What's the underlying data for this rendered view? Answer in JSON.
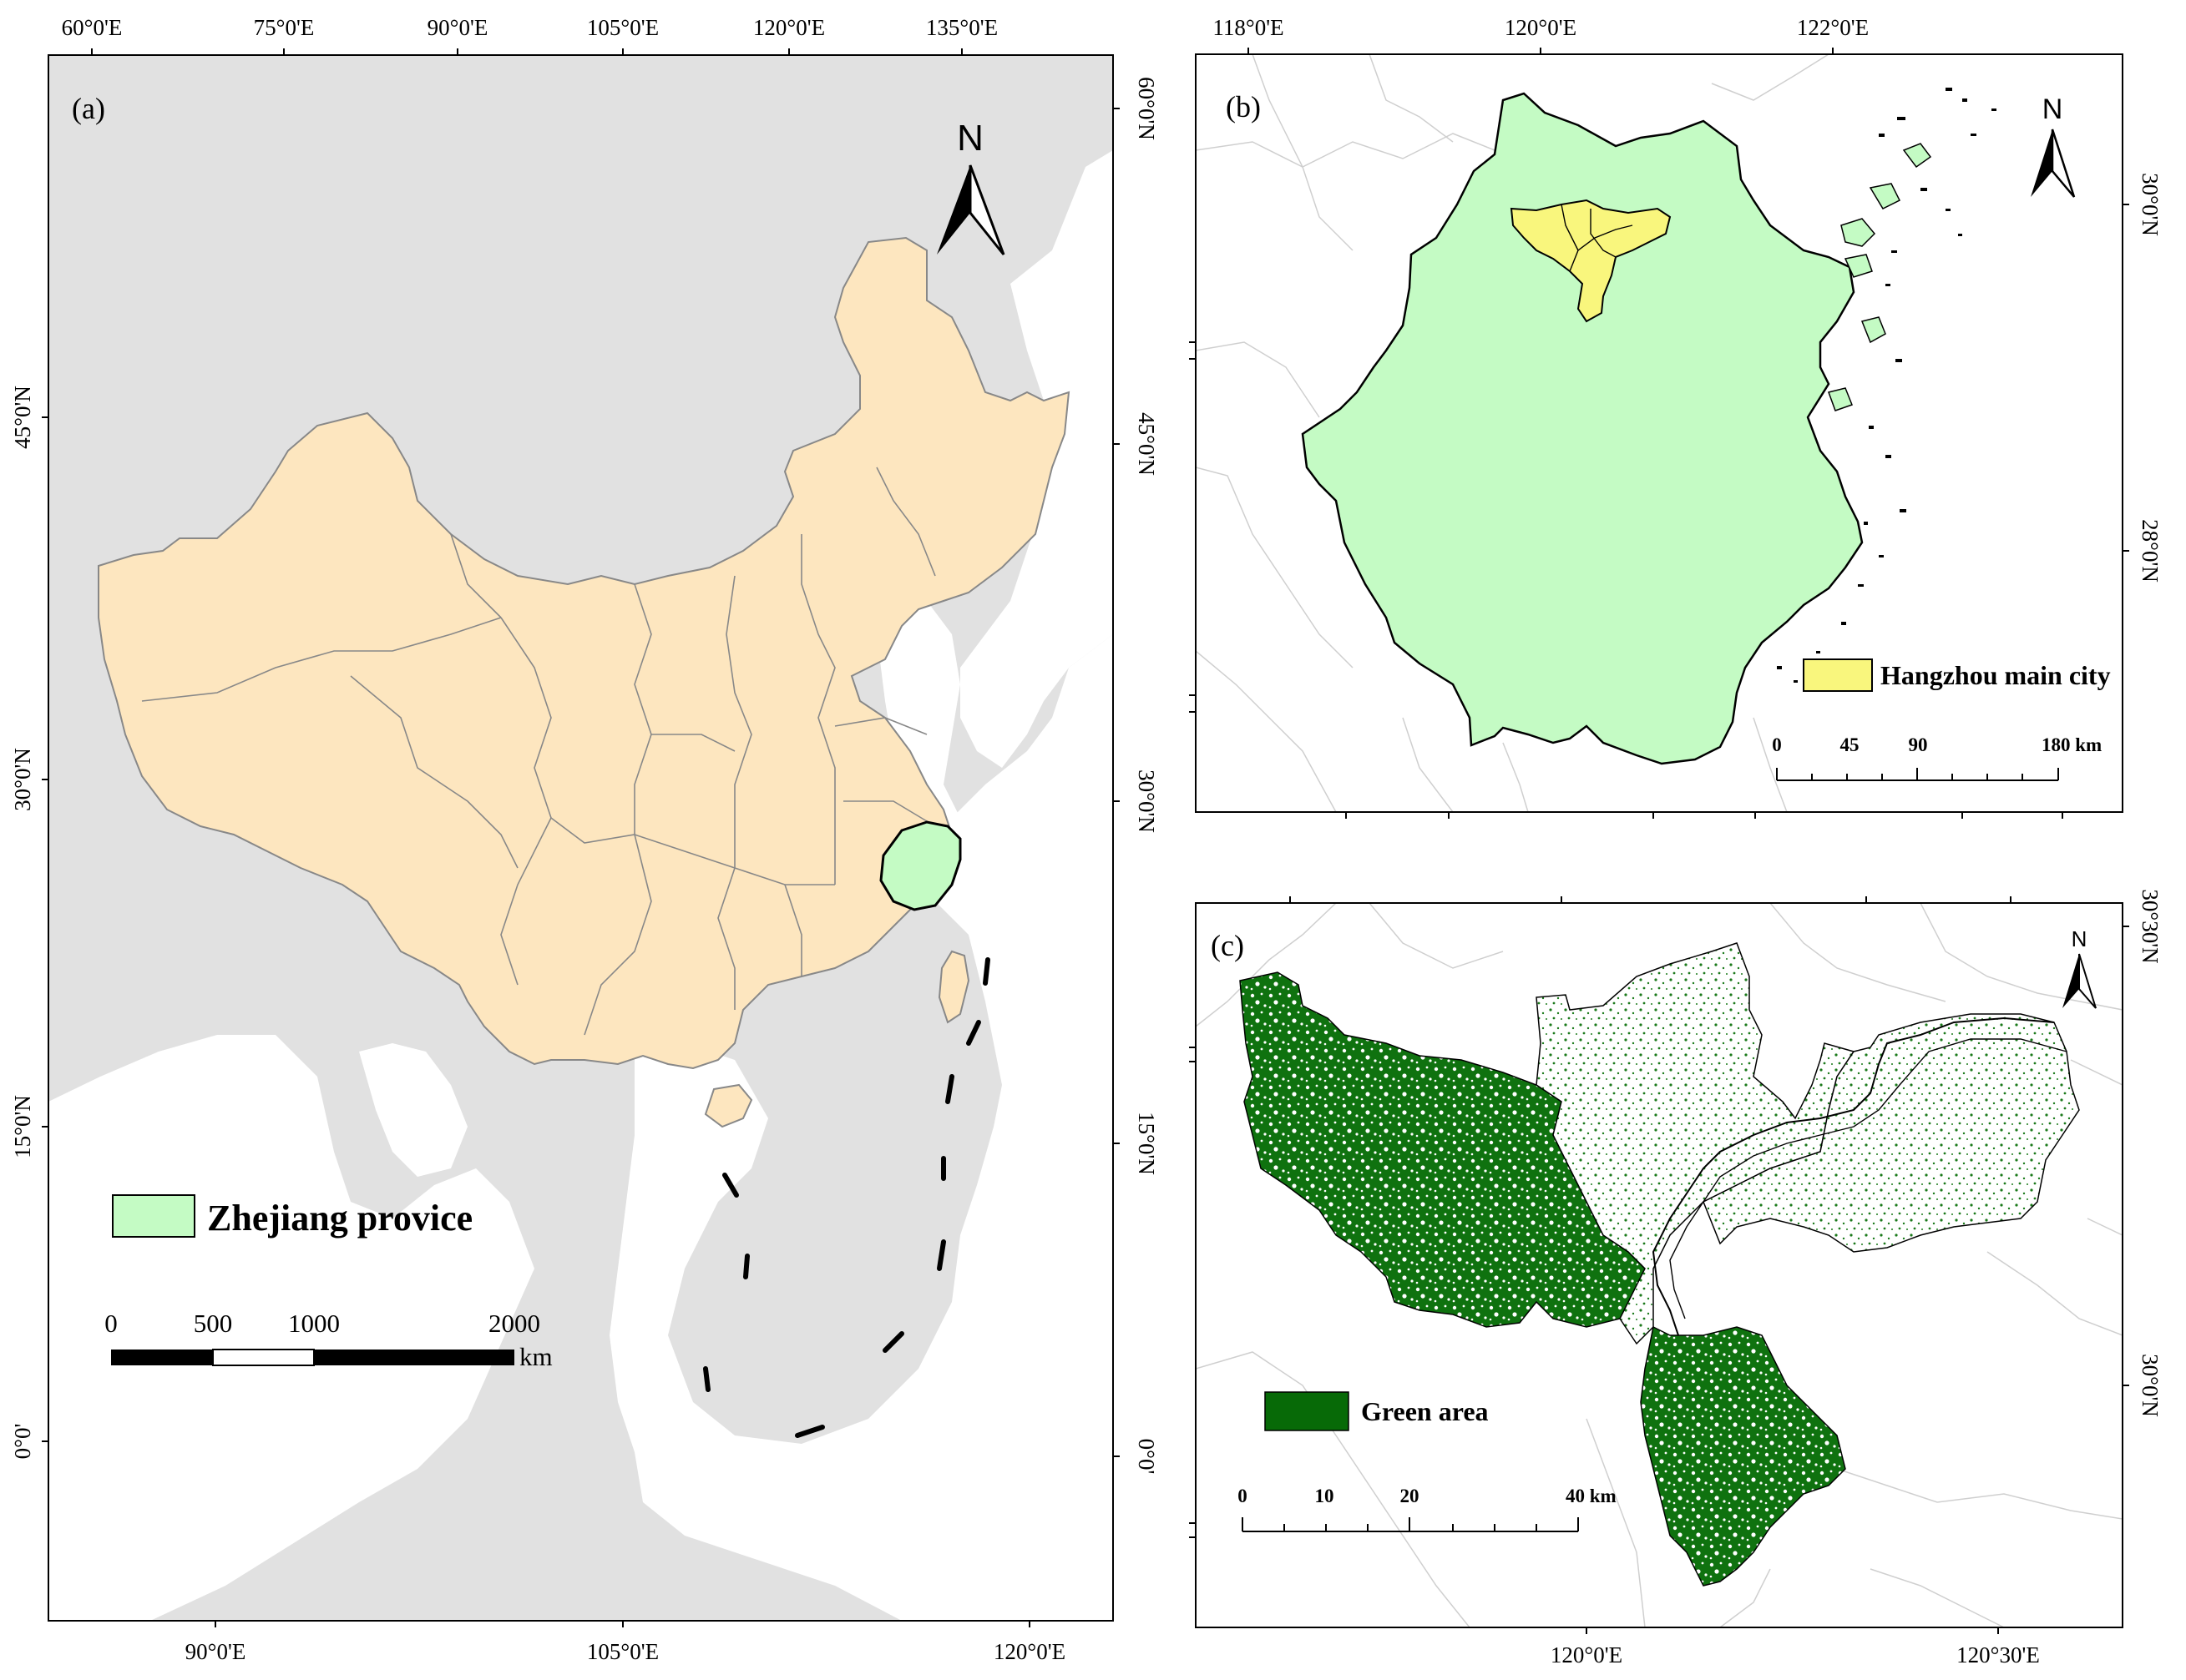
{
  "panels": {
    "a": {
      "label": "(a)",
      "top_ticks": [
        "60°0'E",
        "75°0'E",
        "90°0'E",
        "105°0'E",
        "120°0'E",
        "135°0'E"
      ],
      "bottom_ticks": [
        "90°0'E",
        "105°0'E",
        "120°0'E"
      ],
      "left_ticks": [
        "45°0'N",
        "30°0'N",
        "15°0'N",
        "0°0'"
      ],
      "right_ticks": [
        "60°0'N",
        "45°0'N",
        "30°0'N",
        "15°0'N",
        "0°0'"
      ],
      "north": "N",
      "legend": {
        "label": "Zhejiang provice",
        "color": "#c4fbc4"
      },
      "scalebar": {
        "ticks": [
          "0",
          "500",
          "1000",
          "2000"
        ],
        "unit": "km"
      },
      "colors": {
        "ocean": "#ffffff",
        "land": "#e1e1e1",
        "china": "#fde6bf",
        "zhejiang": "#c4fbc4"
      }
    },
    "b": {
      "label": "(b)",
      "top_ticks": [
        "118°0'E",
        "120°0'E",
        "122°0'E"
      ],
      "right_ticks": [
        "30°0'N",
        "28°0'N"
      ],
      "north": "N",
      "legend": {
        "label": "Hangzhou main city",
        "color": "#f9f67d"
      },
      "scalebar": {
        "ticks": [
          "0",
          "45",
          "90",
          "180 km"
        ]
      }
    },
    "c": {
      "label": "(c)",
      "bottom_ticks": [
        "120°0'E",
        "120°30'E"
      ],
      "right_ticks": [
        "30°30'N",
        "30°0'N"
      ],
      "north": "N",
      "legend": {
        "label": "Green area",
        "color": "#076a07"
      },
      "scalebar": {
        "ticks": [
          "0",
          "10",
          "20",
          "40 km"
        ]
      }
    }
  }
}
